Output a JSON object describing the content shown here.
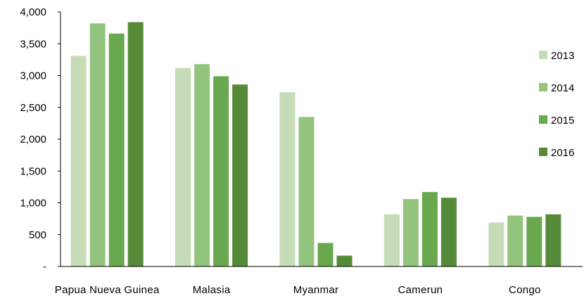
{
  "chart_data": {
    "type": "bar",
    "title": "",
    "xlabel": "",
    "ylabel": "",
    "categories": [
      "Papua Nueva Guinea",
      "Malasia",
      "Myanmar",
      "Camerun",
      "Congo"
    ],
    "series": [
      {
        "name": "2013",
        "color": "#c5dcb6",
        "values": [
          3310,
          3120,
          2740,
          820,
          690
        ]
      },
      {
        "name": "2014",
        "color": "#93c47d",
        "values": [
          3820,
          3180,
          2350,
          1060,
          800
        ]
      },
      {
        "name": "2015",
        "color": "#6aa84f",
        "values": [
          3660,
          2990,
          370,
          1170,
          780
        ]
      },
      {
        "name": "2016",
        "color": "#558b38",
        "values": [
          3840,
          2860,
          170,
          1080,
          820
        ]
      }
    ],
    "ylim": [
      0,
      4000
    ],
    "yticks": [
      0,
      500,
      1000,
      1500,
      2000,
      2500,
      3000,
      3500,
      4000
    ],
    "ytick_labels": [
      "-",
      "500",
      "1,000",
      "1,500",
      "2,000",
      "2,500",
      "3,000",
      "3,500",
      "4,000"
    ],
    "grid": false,
    "legend_position": "right"
  }
}
